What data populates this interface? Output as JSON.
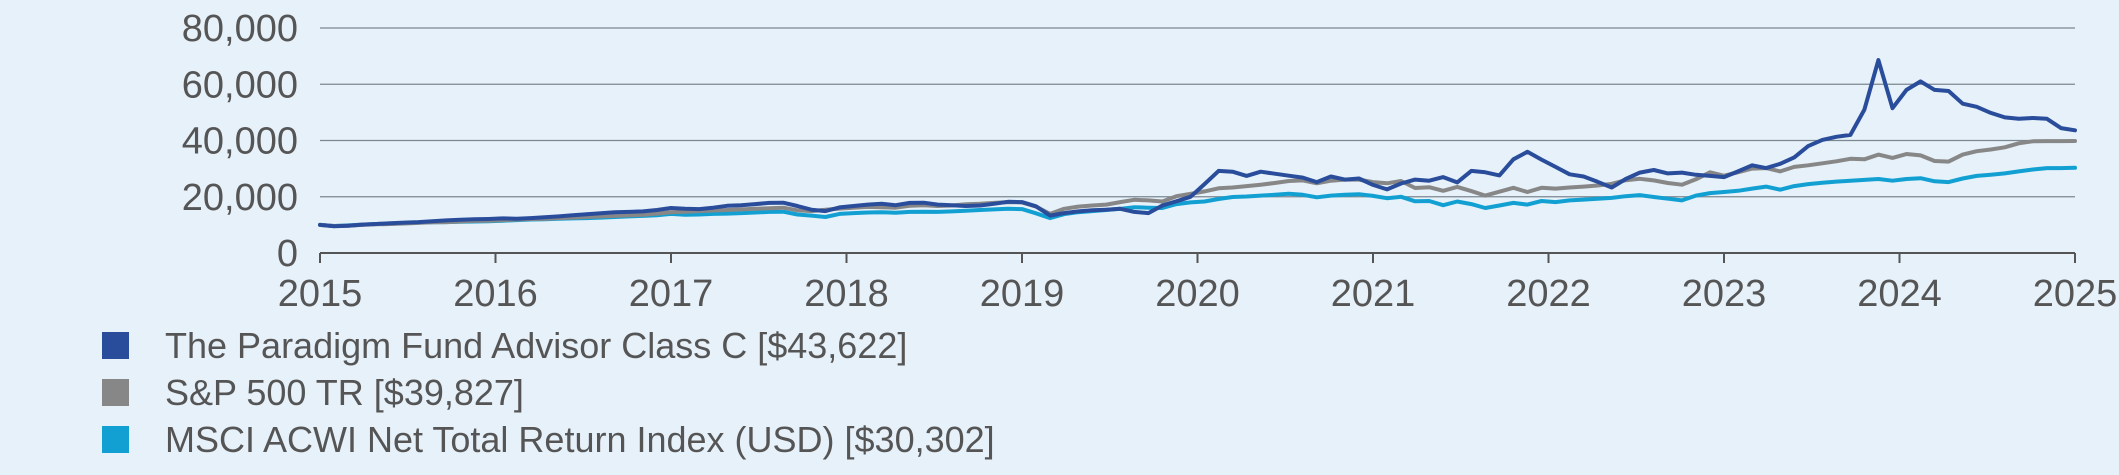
{
  "chart_data": {
    "type": "line",
    "x_start": 2015,
    "x_end": 2025,
    "points_per_year": 12,
    "xlim": [
      2015,
      2025
    ],
    "ylim": [
      0,
      80000
    ],
    "x_ticks": [
      "2015",
      "2016",
      "2017",
      "2018",
      "2019",
      "2020",
      "2021",
      "2022",
      "2023",
      "2024",
      "2025"
    ],
    "y_ticks": [
      "0",
      "20,000",
      "40,000",
      "60,000",
      "80,000"
    ],
    "grid": "horizontal",
    "legend_position": "bottom-left",
    "series": [
      {
        "name": "The Paradigm Fund Advisor Class C [$43,622]",
        "color": "#2a4d9b",
        "values": [
          10000,
          9500,
          9700,
          10100,
          10300,
          10600,
          10800,
          11000,
          11300,
          11600,
          11800,
          12000,
          12100,
          12300,
          12200,
          12400,
          12700,
          13000,
          13400,
          13800,
          14100,
          14500,
          14600,
          14800,
          15300,
          16000,
          15700,
          15600,
          16100,
          16800,
          17000,
          17400,
          17800,
          17900,
          16700,
          15400,
          14900,
          16200,
          16700,
          17200,
          17500,
          17000,
          17800,
          17900,
          17200,
          17000,
          16700,
          16900,
          17500,
          18200,
          18100,
          16600,
          13300,
          14200,
          14800,
          15200,
          15400,
          15700,
          14600,
          14200,
          16900,
          18400,
          20000,
          24500,
          29200,
          28900,
          27400,
          28900,
          28200,
          27500,
          26800,
          25200,
          27200,
          26100,
          26500,
          24200,
          22600,
          24700,
          26100,
          25700,
          27000,
          25100,
          29200,
          28700,
          27600,
          33300,
          36000,
          33200,
          30600,
          28000,
          27200,
          25300,
          23300,
          26300,
          28600,
          29500,
          28300,
          28600,
          27800,
          27400,
          27000,
          29000,
          31200,
          30200,
          31700,
          34000,
          38000,
          40200,
          41300,
          42000,
          51000,
          68600,
          51500,
          58000,
          61000,
          58000,
          57600,
          53100,
          52000,
          49800,
          48200,
          47700,
          48000,
          47700,
          44400,
          43622
        ]
      },
      {
        "name": "S&P 500 TR [$39,827]",
        "color": "#878787",
        "values": [
          10000,
          9600,
          9700,
          10000,
          10200,
          10300,
          10500,
          10700,
          10900,
          11000,
          11200,
          11400,
          11500,
          11700,
          11900,
          12100,
          12200,
          12400,
          12600,
          12800,
          13000,
          13200,
          13400,
          13600,
          14000,
          14500,
          14700,
          14900,
          15100,
          15300,
          15500,
          15700,
          15900,
          16100,
          15200,
          14900,
          15400,
          15800,
          16100,
          16400,
          16300,
          16100,
          16800,
          17000,
          16700,
          16900,
          17300,
          17500,
          17800,
          18100,
          18000,
          16500,
          13900,
          15700,
          16500,
          16900,
          17200,
          18100,
          18900,
          18700,
          18300,
          20200,
          21000,
          21900,
          23000,
          23300,
          23800,
          24300,
          24900,
          25600,
          25800,
          24800,
          25700,
          26100,
          26100,
          25200,
          24800,
          25600,
          23100,
          23400,
          22100,
          23500,
          22000,
          20400,
          21800,
          23200,
          21700,
          23200,
          22900,
          23300,
          23600,
          24000,
          24600,
          25900,
          26400,
          25800,
          24900,
          24300,
          26200,
          28700,
          27500,
          28700,
          30000,
          30200,
          29000,
          30600,
          31200,
          31900,
          32600,
          33500,
          33300,
          35000,
          33800,
          35200,
          34700,
          32700,
          32500,
          35000,
          36200,
          36800,
          37600,
          39000,
          39700,
          39800,
          39800,
          39827
        ]
      },
      {
        "name": "MSCI ACWI Net Total Return Index  (USD) [$30,302]",
        "color": "#12a0d2",
        "values": [
          10000,
          9600,
          9800,
          10100,
          10300,
          10400,
          10600,
          10800,
          10900,
          11000,
          11100,
          11200,
          11300,
          11500,
          11700,
          11900,
          12000,
          12200,
          12300,
          12400,
          12600,
          12800,
          13000,
          13200,
          13400,
          13900,
          13600,
          13700,
          13900,
          14000,
          14200,
          14400,
          14600,
          14700,
          13700,
          13300,
          12800,
          13900,
          14200,
          14400,
          14500,
          14300,
          14600,
          14700,
          14600,
          14800,
          15000,
          15300,
          15500,
          15700,
          15600,
          14100,
          12400,
          13800,
          14500,
          14900,
          15300,
          15700,
          16300,
          16100,
          16000,
          17400,
          18000,
          18300,
          19200,
          19900,
          20100,
          20400,
          20700,
          21100,
          20700,
          19800,
          20400,
          20700,
          20900,
          20300,
          19500,
          20000,
          18400,
          18500,
          17000,
          18300,
          17400,
          16000,
          16900,
          17800,
          17200,
          18500,
          18100,
          18700,
          19000,
          19300,
          19600,
          20200,
          20600,
          19900,
          19300,
          18700,
          20400,
          21300,
          21700,
          22100,
          22900,
          23600,
          22500,
          23800,
          24500,
          25000,
          25400,
          25700,
          26000,
          26300,
          25700,
          26300,
          26600,
          25500,
          25200,
          26500,
          27400,
          27800,
          28300,
          29000,
          29700,
          30200,
          30200,
          30302
        ]
      }
    ]
  }
}
